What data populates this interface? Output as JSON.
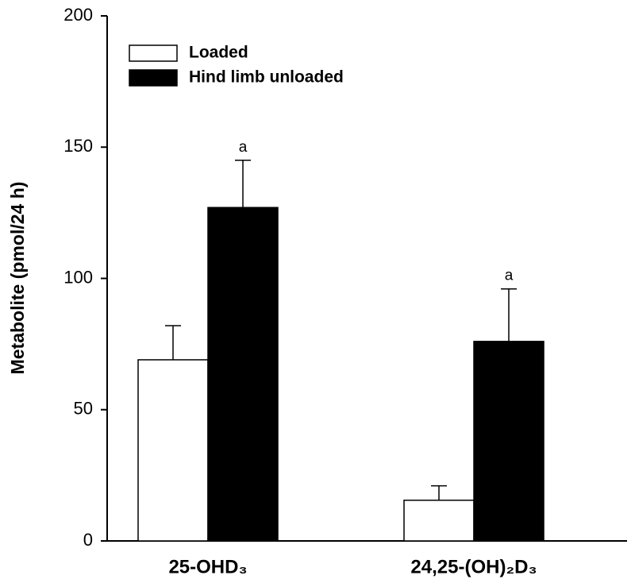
{
  "chart_data": {
    "type": "bar",
    "y_label": "Metabolite (pmol/24 h)",
    "categories": [
      "25-OHD₃",
      "24,25-(OH)₂D₃"
    ],
    "series": [
      {
        "name": "Loaded",
        "color": "#ffffff",
        "values": [
          69,
          15.5
        ],
        "errors": [
          13,
          5.5
        ]
      },
      {
        "name": "Hind limb unloaded",
        "color": "#000000",
        "values": [
          127,
          76
        ],
        "errors": [
          18,
          20
        ],
        "annotations": [
          "a",
          "a"
        ]
      }
    ],
    "ylim": [
      0,
      200
    ],
    "yticks": [
      0,
      50,
      100,
      150,
      200
    ],
    "legend": "top-left"
  }
}
